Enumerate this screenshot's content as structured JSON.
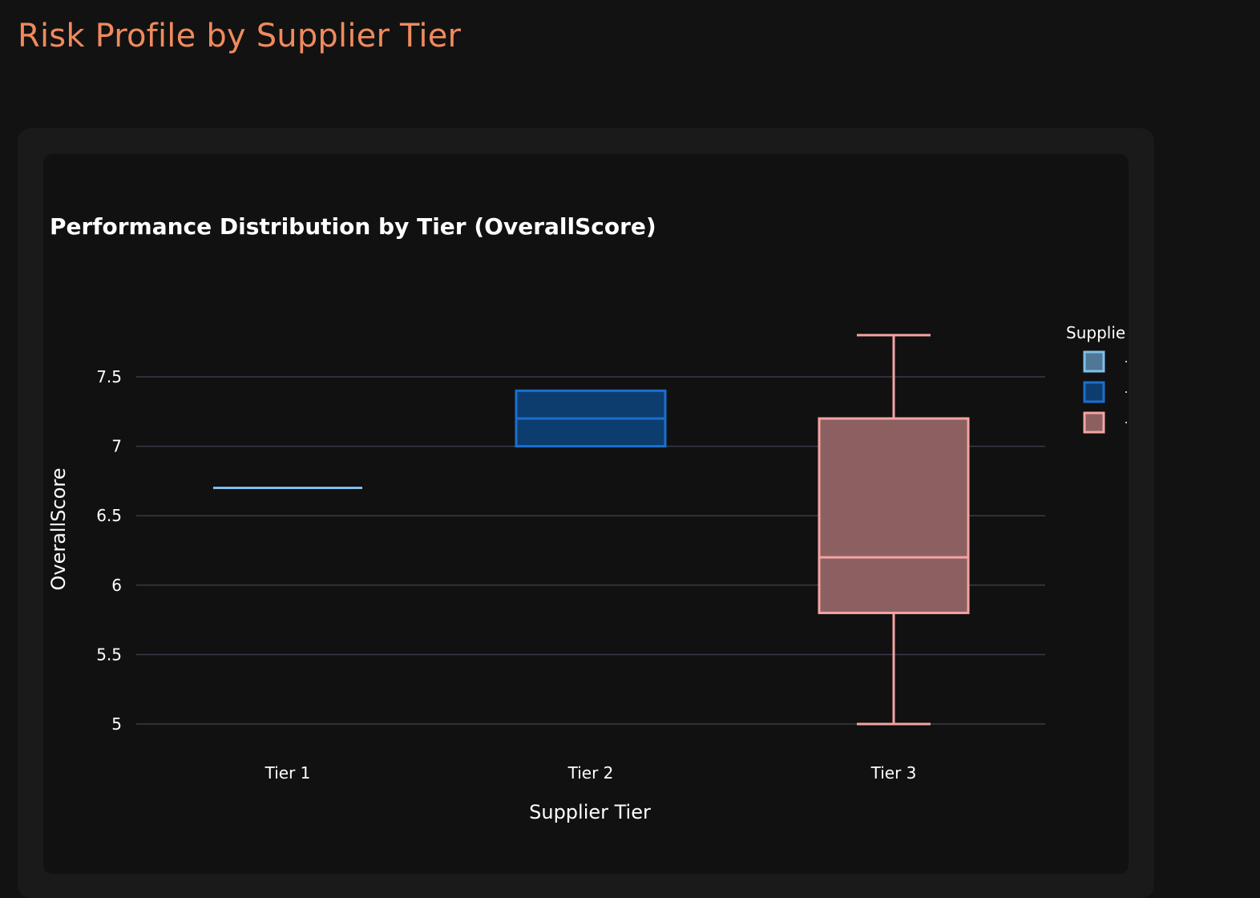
{
  "page": {
    "title": "Risk Profile by Supplier Tier"
  },
  "chart_data": {
    "type": "box",
    "title": "Performance Distribution by Tier (OverallScore)",
    "xlabel": "Supplier Tier",
    "ylabel": "OverallScore",
    "ylim": [
      4.8,
      7.9
    ],
    "yticks": [
      5,
      5.5,
      6,
      6.5,
      7,
      7.5
    ],
    "ytick_labels": [
      "5",
      "5.5",
      "6",
      "6.5",
      "7",
      "7.5"
    ],
    "grid": true,
    "legend": {
      "title": "Supplie",
      "placement": "right"
    },
    "categories": [
      "Tier 1",
      "Tier 2",
      "Tier 3"
    ],
    "series": [
      {
        "category": "Tier 1",
        "min": 6.7,
        "q1": 6.7,
        "median": 6.7,
        "q3": 6.7,
        "max": 6.7,
        "stroke": "#7fbfea",
        "fill": "#4f7896"
      },
      {
        "category": "Tier 2",
        "min": 7.0,
        "q1": 7.0,
        "median": 7.2,
        "q3": 7.4,
        "max": 7.4,
        "stroke": "#1a6fd0",
        "fill": "#0d3d6e"
      },
      {
        "category": "Tier 3",
        "min": 5.0,
        "q1": 5.8,
        "median": 6.2,
        "q3": 7.2,
        "max": 7.8,
        "stroke": "#f4a3a3",
        "fill": "#8c6060"
      }
    ]
  },
  "colors": {
    "background": "#121212",
    "outer_card": "#1a1a1a",
    "inner_card": "#111111",
    "title_accent": "#f08a5d",
    "gridline": "#3a3a48"
  }
}
